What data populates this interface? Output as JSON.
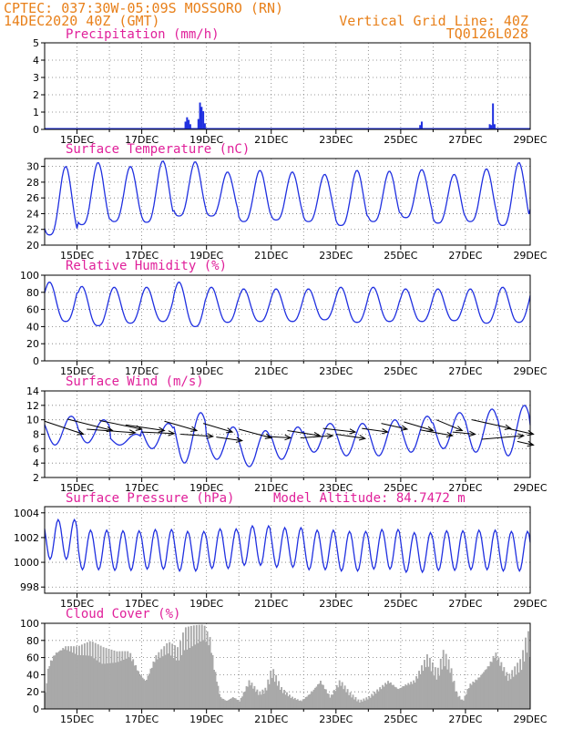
{
  "header": {
    "line1": "CPTEC:  037:30W-05:09S  MOSSORO (RN)",
    "line2_left": "14DEC2020 40Z (GMT)",
    "line2_right": "Vertical Grid Line: 40Z",
    "line3_right": "TQ0126L028"
  },
  "colors": {
    "header": "#e8801a",
    "title": "#e0209a",
    "series": "#2030e0",
    "cloud": "#a9a9a9",
    "wind_arrow": "#000000"
  },
  "chart_data": [
    {
      "type": "bar",
      "title": "Precipitation (mm/h)",
      "xlabel": "",
      "ylabel": "",
      "ylim": [
        0,
        5
      ],
      "yticks": [
        0,
        1,
        2,
        3,
        4,
        5
      ],
      "xlim": [
        14,
        29
      ],
      "xticks": [
        "15DEC",
        "17DEC",
        "19DEC",
        "21DEC",
        "23DEC",
        "25DEC",
        "27DEC",
        "29DEC"
      ],
      "grid": true,
      "baseline": 0.05,
      "events": [
        {
          "x": 18.35,
          "y": 0.45
        },
        {
          "x": 18.4,
          "y": 0.7
        },
        {
          "x": 18.45,
          "y": 0.55
        },
        {
          "x": 18.5,
          "y": 0.3
        },
        {
          "x": 18.75,
          "y": 0.6
        },
        {
          "x": 18.8,
          "y": 1.55
        },
        {
          "x": 18.85,
          "y": 1.3
        },
        {
          "x": 18.9,
          "y": 1.05
        },
        {
          "x": 18.95,
          "y": 0.35
        },
        {
          "x": 25.6,
          "y": 0.25
        },
        {
          "x": 25.65,
          "y": 0.45
        },
        {
          "x": 27.75,
          "y": 0.3
        },
        {
          "x": 27.8,
          "y": 0.25
        },
        {
          "x": 27.85,
          "y": 1.5
        },
        {
          "x": 27.9,
          "y": 0.3
        }
      ]
    },
    {
      "type": "line",
      "title": "Surface Temperature (nC)",
      "ylim": [
        20,
        31
      ],
      "yticks": [
        20,
        22,
        24,
        26,
        28,
        30
      ],
      "xlim": [
        14,
        29
      ],
      "xticks": [
        "15DEC",
        "17DEC",
        "19DEC",
        "21DEC",
        "23DEC",
        "25DEC",
        "27DEC",
        "29DEC"
      ],
      "grid": true,
      "diurnal": {
        "phase": 0.65,
        "shape": 1.5
      },
      "daily_max": [
        30.0,
        30.5,
        30.0,
        30.7,
        30.6,
        29.3,
        29.5,
        29.3,
        29.0,
        29.5,
        29.4,
        29.6,
        29.0,
        29.7,
        30.5,
        29.9
      ],
      "daily_min": [
        21.3,
        22.6,
        23.0,
        22.9,
        23.7,
        23.7,
        23.0,
        23.2,
        23.0,
        22.5,
        23.0,
        23.5,
        22.8,
        23.0,
        22.5,
        24.0
      ]
    },
    {
      "type": "line",
      "title": "Relative Humidity (%)",
      "ylim": [
        0,
        100
      ],
      "yticks": [
        0,
        20,
        40,
        60,
        80,
        100
      ],
      "xlim": [
        14,
        29
      ],
      "xticks": [
        "15DEC",
        "17DEC",
        "19DEC",
        "21DEC",
        "23DEC",
        "25DEC",
        "27DEC",
        "29DEC"
      ],
      "grid": true,
      "diurnal": {
        "phase": 0.15,
        "shape": 1.4
      },
      "daily_max": [
        92,
        87,
        86,
        86,
        92,
        86,
        84,
        84,
        84,
        86,
        86,
        84,
        84,
        84,
        86,
        88
      ],
      "daily_min": [
        46,
        41,
        44,
        46,
        40,
        45,
        46,
        46,
        48,
        45,
        46,
        46,
        47,
        44,
        45,
        46
      ]
    },
    {
      "type": "line",
      "title": "Surface Wind (m/s)",
      "ylim": [
        2,
        14
      ],
      "yticks": [
        2,
        4,
        6,
        8,
        10,
        12,
        14
      ],
      "xlim": [
        14,
        29
      ],
      "xticks": [
        "15DEC",
        "17DEC",
        "19DEC",
        "21DEC",
        "23DEC",
        "25DEC",
        "27DEC",
        "29DEC"
      ],
      "grid": true,
      "diurnal": {
        "phase": 0.82,
        "shape": 1.0
      },
      "daily_max": [
        10.5,
        10.0,
        8.0,
        9.5,
        11.0,
        9.0,
        8.5,
        9.0,
        9.5,
        9.5,
        10.0,
        10.5,
        11.0,
        11.5,
        12.0,
        11.0
      ],
      "daily_min": [
        6.5,
        6.8,
        6.5,
        6.0,
        4.0,
        4.5,
        3.5,
        4.5,
        5.5,
        5.0,
        5.0,
        5.5,
        6.0,
        5.5,
        5.0,
        5.0
      ],
      "wind_vectors": [
        {
          "x": 14.0,
          "y": 9.8,
          "dx": 1.2,
          "dy": -1.8
        },
        {
          "x": 14.7,
          "y": 10.1,
          "dx": 1.4,
          "dy": -1.6
        },
        {
          "x": 15.3,
          "y": 8.7,
          "dx": 1.5,
          "dy": -0.5
        },
        {
          "x": 15.7,
          "y": 9.9,
          "dx": 1.3,
          "dy": -1.2
        },
        {
          "x": 16.5,
          "y": 9.3,
          "dx": 1.2,
          "dy": -0.8
        },
        {
          "x": 17.0,
          "y": 8.3,
          "dx": 1.0,
          "dy": -0.2
        },
        {
          "x": 17.7,
          "y": 9.8,
          "dx": 1.0,
          "dy": -1.3
        },
        {
          "x": 18.2,
          "y": 8.0,
          "dx": 1.0,
          "dy": -0.3
        },
        {
          "x": 18.9,
          "y": 9.5,
          "dx": 0.9,
          "dy": -1.2
        },
        {
          "x": 19.3,
          "y": 7.6,
          "dx": 0.8,
          "dy": -0.5
        },
        {
          "x": 20.0,
          "y": 8.7,
          "dx": 1.0,
          "dy": -1.2
        },
        {
          "x": 20.8,
          "y": 7.7,
          "dx": 0.8,
          "dy": -0.2
        },
        {
          "x": 21.5,
          "y": 8.5,
          "dx": 1.0,
          "dy": -0.7
        },
        {
          "x": 21.9,
          "y": 7.5,
          "dx": 1.0,
          "dy": 0.3
        },
        {
          "x": 22.6,
          "y": 8.8,
          "dx": 1.0,
          "dy": -0.5
        },
        {
          "x": 23.0,
          "y": 8.0,
          "dx": 0.9,
          "dy": -0.6
        },
        {
          "x": 23.8,
          "y": 8.8,
          "dx": 0.8,
          "dy": -0.5
        },
        {
          "x": 24.4,
          "y": 9.5,
          "dx": 0.8,
          "dy": -0.8
        },
        {
          "x": 25.1,
          "y": 9.7,
          "dx": 0.9,
          "dy": -1.2
        },
        {
          "x": 25.6,
          "y": 8.6,
          "dx": 1.0,
          "dy": -0.8
        },
        {
          "x": 26.1,
          "y": 10.0,
          "dx": 0.8,
          "dy": -1.5
        },
        {
          "x": 26.6,
          "y": 8.3,
          "dx": 0.7,
          "dy": -0.3
        },
        {
          "x": 27.2,
          "y": 10.0,
          "dx": 1.2,
          "dy": -1.2
        },
        {
          "x": 27.5,
          "y": 7.3,
          "dx": 1.3,
          "dy": 0.5
        },
        {
          "x": 28.3,
          "y": 8.8,
          "dx": 0.8,
          "dy": -0.8
        },
        {
          "x": 28.6,
          "y": 7.0,
          "dx": 0.5,
          "dy": -0.5
        }
      ]
    },
    {
      "type": "line",
      "title": "Surface Pressure (hPa)",
      "annotation": "Model Altitude: 84.7472 m",
      "ylim": [
        997.5,
        1004.5
      ],
      "yticks": [
        998,
        1000,
        1002,
        1004
      ],
      "xlim": [
        14,
        29
      ],
      "xticks": [
        "15DEC",
        "17DEC",
        "19DEC",
        "21DEC",
        "23DEC",
        "25DEC",
        "27DEC",
        "29DEC"
      ],
      "grid": true,
      "semidiurnal": {
        "mean": 1000.9,
        "amplitude": 1.6,
        "phase": 0.42
      },
      "daily_offset": [
        1.9,
        0.2,
        0.1,
        0.3,
        0.0,
        0.4,
        0.9,
        0.6,
        0.2,
        0.0,
        0.3,
        -0.2,
        0.1,
        0.2,
        0.0,
        -0.3
      ]
    },
    {
      "type": "area",
      "title": "Cloud Cover (%)",
      "ylim": [
        0,
        100
      ],
      "yticks": [
        0,
        20,
        40,
        60,
        80,
        100
      ],
      "xlim": [
        14,
        29
      ],
      "xticks": [
        "15DEC",
        "17DEC",
        "19DEC",
        "21DEC",
        "23DEC",
        "25DEC",
        "27DEC",
        "29DEC"
      ],
      "grid": true,
      "profile": [
        [
          14.0,
          20
        ],
        [
          14.1,
          55
        ],
        [
          14.3,
          70
        ],
        [
          14.6,
          78
        ],
        [
          15.0,
          75
        ],
        [
          15.4,
          80
        ],
        [
          15.8,
          72
        ],
        [
          16.2,
          68
        ],
        [
          16.6,
          70
        ],
        [
          16.9,
          45
        ],
        [
          17.1,
          35
        ],
        [
          17.4,
          65
        ],
        [
          17.8,
          80
        ],
        [
          18.1,
          72
        ],
        [
          18.3,
          95
        ],
        [
          18.6,
          98
        ],
        [
          18.9,
          100
        ],
        [
          19.1,
          85
        ],
        [
          19.2,
          55
        ],
        [
          19.4,
          15
        ],
        [
          19.6,
          10
        ],
        [
          19.8,
          15
        ],
        [
          20.0,
          10
        ],
        [
          20.3,
          35
        ],
        [
          20.6,
          20
        ],
        [
          20.8,
          25
        ],
        [
          21.0,
          50
        ],
        [
          21.3,
          25
        ],
        [
          21.6,
          15
        ],
        [
          21.9,
          10
        ],
        [
          22.2,
          20
        ],
        [
          22.5,
          35
        ],
        [
          22.8,
          15
        ],
        [
          23.1,
          35
        ],
        [
          23.4,
          20
        ],
        [
          23.7,
          10
        ],
        [
          24.0,
          15
        ],
        [
          24.3,
          25
        ],
        [
          24.6,
          35
        ],
        [
          24.9,
          25
        ],
        [
          25.1,
          30
        ],
        [
          25.4,
          35
        ],
        [
          25.8,
          65
        ],
        [
          26.1,
          45
        ],
        [
          26.3,
          70
        ],
        [
          26.5,
          55
        ],
        [
          26.7,
          20
        ],
        [
          26.9,
          10
        ],
        [
          27.1,
          30
        ],
        [
          27.4,
          40
        ],
        [
          27.7,
          55
        ],
        [
          27.9,
          70
        ],
        [
          28.1,
          55
        ],
        [
          28.3,
          40
        ],
        [
          28.5,
          50
        ],
        [
          28.7,
          60
        ],
        [
          28.9,
          95
        ],
        [
          29.0,
          70
        ]
      ]
    }
  ]
}
